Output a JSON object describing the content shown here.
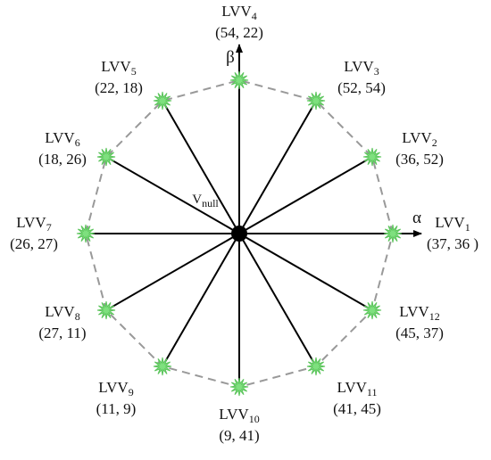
{
  "axes": {
    "alpha": "α",
    "beta": "β"
  },
  "center": {
    "label": "V",
    "subscript": "null"
  },
  "nodes": [
    {
      "label": "LVV",
      "subscript": "1",
      "coords": "(37, 36 )"
    },
    {
      "label": "LVV",
      "subscript": "2",
      "coords": "(36, 52)"
    },
    {
      "label": "LVV",
      "subscript": "3",
      "coords": "(52, 54)"
    },
    {
      "label": "LVV",
      "subscript": "4",
      "coords": "(54, 22)"
    },
    {
      "label": "LVV",
      "subscript": "5",
      "coords": "(22, 18)"
    },
    {
      "label": "LVV",
      "subscript": "6",
      "coords": "(18, 26)"
    },
    {
      "label": "LVV",
      "subscript": "7",
      "coords": "(26, 27)"
    },
    {
      "label": "LVV",
      "subscript": "8",
      "coords": "(27, 11)"
    },
    {
      "label": "LVV",
      "subscript": "9",
      "coords": "(11, 9)"
    },
    {
      "label": "LVV",
      "subscript": "10",
      "coords": "(9, 41)"
    },
    {
      "label": "LVV",
      "subscript": "11",
      "coords": "(41, 45)"
    },
    {
      "label": "LVV",
      "subscript": "12",
      "coords": "(45, 37)"
    }
  ]
}
